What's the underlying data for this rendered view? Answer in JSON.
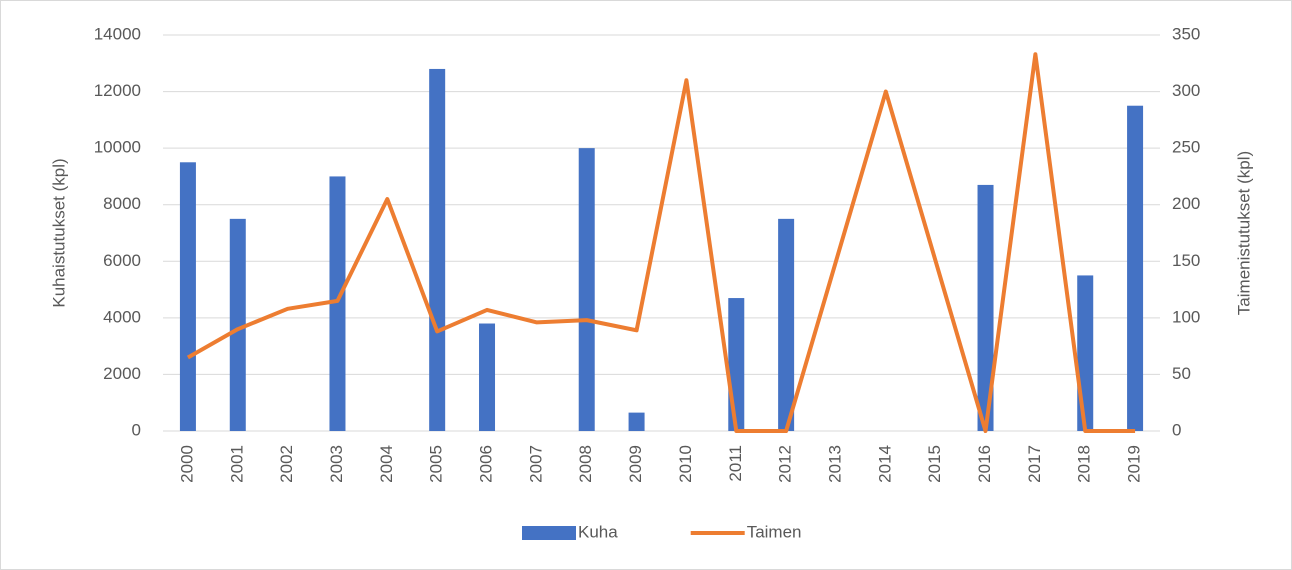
{
  "chart_data": {
    "type": "bar",
    "categories": [
      "2000",
      "2001",
      "2002",
      "2003",
      "2004",
      "2005",
      "2006",
      "2007",
      "2008",
      "2009",
      "2010",
      "2011",
      "2012",
      "2013",
      "2014",
      "2015",
      "2016",
      "2017",
      "2018",
      "2019"
    ],
    "ylabel": "Kuhaistutukset (kpl)",
    "y2label": "Taimenistutukset (kpl)",
    "ylim": [
      0,
      14000
    ],
    "yticks": [
      0,
      2000,
      4000,
      6000,
      8000,
      10000,
      12000,
      14000
    ],
    "y2lim": [
      0,
      350
    ],
    "y2ticks": [
      0,
      50,
      100,
      150,
      200,
      250,
      300,
      350
    ],
    "grid": true,
    "legend": "bottom",
    "series": [
      {
        "name": "Kuha",
        "type": "bar",
        "color": "#4472c4",
        "values": [
          9500,
          7500,
          null,
          9000,
          null,
          12800,
          3800,
          null,
          10000,
          650,
          null,
          4700,
          7500,
          null,
          null,
          null,
          8700,
          null,
          5500,
          11500
        ]
      },
      {
        "name": "Taimen",
        "type": "line",
        "axis": "y2",
        "color": "#ed7d31",
        "values": [
          65,
          90,
          108,
          115,
          205,
          88,
          107,
          96,
          98,
          89,
          310,
          0,
          0,
          150,
          300,
          150,
          0,
          333,
          0,
          0
        ]
      }
    ]
  }
}
